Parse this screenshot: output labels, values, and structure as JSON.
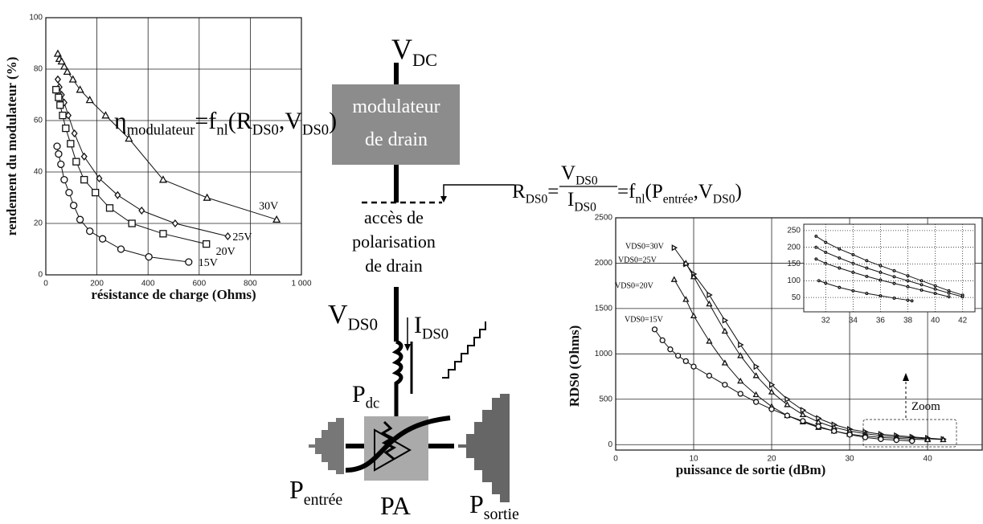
{
  "chart_data": [
    {
      "type": "line",
      "xlabel": "résistance de charge (Ohms)",
      "ylabel": "rendement du modulateur (%)",
      "xlim": [
        0,
        1000
      ],
      "xticks": [
        0,
        200,
        400,
        600,
        800,
        {
          "value": 1000,
          "label": "1 000"
        }
      ],
      "ylim": [
        0,
        100
      ],
      "yticks": [
        0,
        20,
        40,
        60,
        80,
        100
      ],
      "grid": true,
      "annotation": [
        {
          "text": "η"
        },
        {
          "text": "modulateur",
          "sub": true
        },
        {
          "text": "=f"
        },
        {
          "text": "nl",
          "sub": true
        },
        {
          "text": "(R"
        },
        {
          "text": "DS0",
          "sub": true
        },
        {
          "text": ",V"
        },
        {
          "text": "DS0",
          "sub": true
        },
        {
          "text": ")"
        }
      ],
      "series": [
        {
          "name": "30V",
          "marker": "triangle",
          "color": "#111",
          "x": [
            47,
            53,
            62,
            72,
            84,
            106,
            134,
            172,
            234,
            325,
            459,
            631,
            903
          ],
          "values": [
            86,
            84,
            83,
            81,
            79,
            76,
            72,
            68,
            62,
            53,
            37,
            30,
            21.5
          ]
        },
        {
          "name": "25V",
          "marker": "diamond",
          "color": "#111",
          "x": [
            47,
            53,
            62,
            72,
            88,
            112,
            150,
            209,
            281,
            375,
            506,
            712
          ],
          "values": [
            76,
            73,
            70,
            67,
            62,
            55,
            46,
            37.5,
            31,
            25,
            20,
            15
          ]
        },
        {
          "name": "20V",
          "marker": "square",
          "color": "#111",
          "x": [
            40,
            50,
            56,
            66,
            78,
            97,
            119,
            150,
            194,
            250,
            337,
            459,
            628
          ],
          "values": [
            72,
            69,
            66,
            62,
            57,
            51,
            44,
            37,
            32,
            26,
            20,
            16,
            12
          ]
        },
        {
          "name": "15V",
          "marker": "circle",
          "color": "#111",
          "x": [
            44,
            50,
            59,
            72,
            91,
            109,
            134,
            172,
            222,
            294,
            403,
            559
          ],
          "values": [
            50,
            47,
            43,
            37,
            32,
            27,
            21.5,
            17,
            14,
            10,
            7,
            5
          ]
        }
      ]
    },
    {
      "type": "line",
      "xlabel": "puissance de sortie (dBm)",
      "ylabel": "RDS0 (Ohms)",
      "xlim": [
        0,
        47
      ],
      "xticks": [
        0,
        10,
        20,
        30,
        40
      ],
      "ylim": [
        -60,
        2500
      ],
      "yticks": [
        0,
        500,
        1000,
        1500,
        2000,
        2500
      ],
      "grid": true,
      "annotation": "Zoom",
      "series": [
        {
          "name": "VDS0=30V",
          "marker": "triangle-right",
          "color": "#111",
          "x": [
            7.5,
            9,
            10,
            12,
            14,
            16,
            18,
            20,
            22,
            24,
            26,
            28,
            30,
            32,
            34,
            36,
            38,
            40,
            42
          ],
          "values": [
            2170,
            1990,
            1880,
            1650,
            1370,
            1100,
            860,
            660,
            500,
            380,
            290,
            220,
            170,
            140,
            115,
            100,
            85,
            72,
            60
          ]
        },
        {
          "name": "VDS0=25V",
          "marker": "triangle",
          "color": "#111",
          "x": [
            9,
            10,
            12,
            14,
            16,
            18,
            20,
            22,
            24,
            26,
            28,
            30,
            32,
            34,
            36,
            38,
            40,
            42
          ],
          "values": [
            2000,
            1850,
            1550,
            1250,
            980,
            760,
            580,
            440,
            330,
            250,
            190,
            150,
            120,
            100,
            85,
            75,
            65,
            55
          ]
        },
        {
          "name": "VDS0=20V",
          "marker": "triangle",
          "color": "#111",
          "x": [
            7.5,
            9,
            10,
            12,
            14,
            16,
            18,
            20,
            22,
            24,
            26,
            28,
            30,
            32,
            34,
            36,
            38,
            40
          ],
          "values": [
            1820,
            1600,
            1420,
            1140,
            900,
            700,
            550,
            420,
            320,
            250,
            190,
            150,
            115,
            95,
            80,
            70,
            60,
            55
          ]
        },
        {
          "name": "VDS0=15V",
          "marker": "circle",
          "color": "#111",
          "x": [
            5,
            6,
            7,
            8,
            9,
            10,
            12,
            14,
            16,
            18,
            20,
            22,
            24,
            26,
            28,
            30,
            32,
            34,
            36,
            38
          ],
          "values": [
            1270,
            1150,
            1050,
            980,
            920,
            860,
            760,
            660,
            560,
            470,
            390,
            320,
            260,
            200,
            150,
            110,
            80,
            60,
            50,
            40
          ]
        }
      ]
    },
    {
      "type": "line",
      "xlim": [
        30.4,
        42.9
      ],
      "xticks": [
        32,
        34,
        36,
        38,
        40,
        42
      ],
      "ylim": [
        7,
        269
      ],
      "yticks": [
        50,
        100,
        150,
        200,
        250
      ],
      "grid": true,
      "series": [
        {
          "marker": "dot",
          "color": "#111",
          "x": [
            31.3,
            32,
            33,
            34,
            35,
            36,
            37,
            38,
            39,
            40,
            41,
            42
          ],
          "values": [
            233,
            215,
            195,
            178,
            160,
            145,
            130,
            115,
            100,
            85,
            70,
            57
          ]
        },
        {
          "marker": "dot",
          "color": "#111",
          "x": [
            31.3,
            32,
            33,
            34,
            35,
            36,
            37,
            38,
            39,
            40,
            41,
            42
          ],
          "values": [
            200,
            185,
            168,
            152,
            138,
            125,
            112,
            100,
            88,
            75,
            63,
            52
          ]
        },
        {
          "marker": "dot",
          "color": "#111",
          "x": [
            31.3,
            32,
            33,
            34,
            35,
            36,
            37,
            38,
            39,
            40,
            41
          ],
          "values": [
            165,
            152,
            138,
            125,
            113,
            102,
            92,
            82,
            72,
            62,
            52
          ]
        },
        {
          "marker": "dot",
          "color": "#111",
          "x": [
            31.5,
            32,
            33,
            34,
            35,
            36,
            37,
            38,
            38.3
          ],
          "values": [
            100,
            93,
            80,
            70,
            62,
            55,
            48,
            42,
            40
          ]
        }
      ]
    }
  ],
  "diagram": {
    "vdc": [
      {
        "text": "V"
      },
      {
        "text": "DC",
        "sub": true
      }
    ],
    "modulator": [
      "modulateur",
      "de drain"
    ],
    "bias_access": [
      "accès de",
      "polarisation",
      "de drain"
    ],
    "rds0_lhs": [
      {
        "text": "R"
      },
      {
        "text": "DS0",
        "sub": true
      },
      {
        "text": "="
      }
    ],
    "rds0_num": [
      {
        "text": "V"
      },
      {
        "text": "DS0",
        "sub": true
      }
    ],
    "rds0_den": [
      {
        "text": "I"
      },
      {
        "text": "DS0",
        "sub": true
      }
    ],
    "rds0_rhs": [
      {
        "text": "=f"
      },
      {
        "text": "nl",
        "sub": true
      },
      {
        "text": "(P"
      },
      {
        "text": "entrée",
        "sub": true
      },
      {
        "text": ",V"
      },
      {
        "text": "DS0",
        "sub": true
      },
      {
        "text": ")"
      }
    ],
    "vds0": [
      {
        "text": "V"
      },
      {
        "text": "DS0",
        "sub": true
      }
    ],
    "ids0": [
      {
        "text": "I"
      },
      {
        "text": "DS0",
        "sub": true
      }
    ],
    "pdc": [
      {
        "text": "P"
      },
      {
        "text": "dc",
        "sub": true
      }
    ],
    "pa": "PA",
    "pin": [
      {
        "text": "P"
      },
      {
        "text": "entrée",
        "sub": true
      }
    ],
    "pout": [
      {
        "text": "P"
      },
      {
        "text": "sortie",
        "sub": true
      }
    ]
  }
}
